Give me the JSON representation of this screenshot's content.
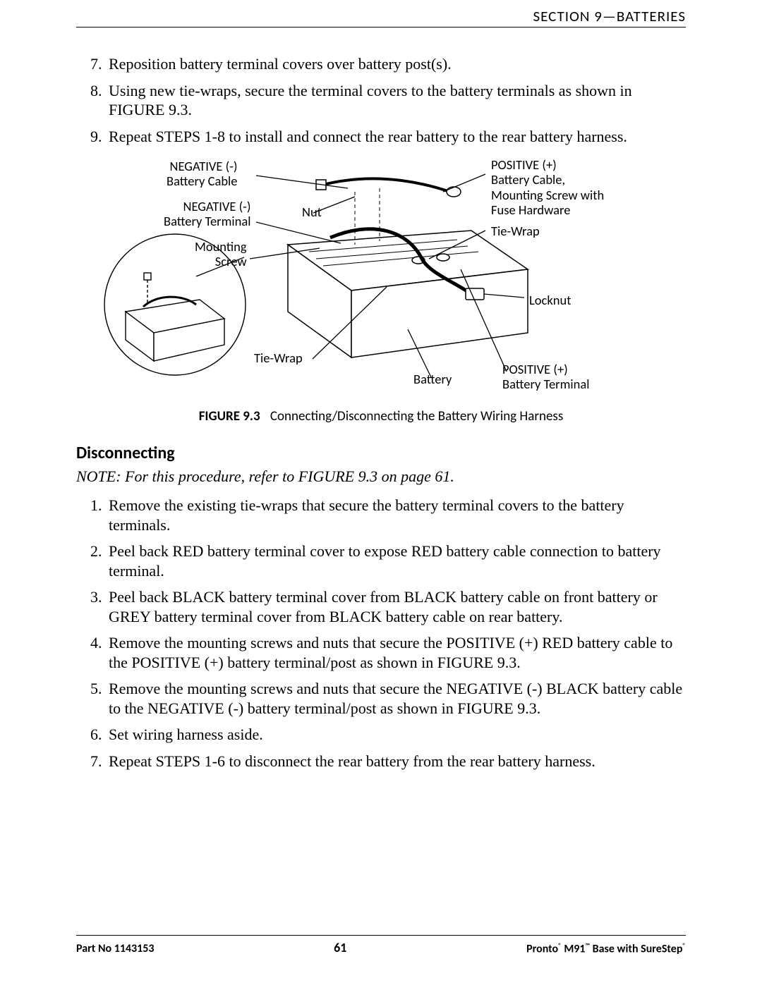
{
  "header": {
    "section_label": "SECTION 9—BATTERIES"
  },
  "steps_top": {
    "start": 7,
    "items": [
      "Reposition battery terminal covers over battery post(s).",
      "Using new tie-wraps, secure the terminal covers to the battery terminals as shown in FIGURE 9.3.",
      "Repeat STEPS 1-8 to install and connect the rear battery to the rear battery harness."
    ]
  },
  "figure": {
    "id": "FIGURE 9.3",
    "caption": "Connecting/Disconnecting the Battery Wiring Harness",
    "labels": {
      "neg_cable": "NEGATIVE (-)\nBattery Cable",
      "neg_terminal": "NEGATIVE (-)\nBattery Terminal",
      "mounting_screw": "Mounting\nScrew",
      "nut": "Nut",
      "tie_wrap_bottom": "Tie-Wrap",
      "pos_cable": "POSITIVE (+)\nBattery Cable,\nMounting Screw with\nFuse Hardware",
      "tie_wrap_right": "Tie-Wrap",
      "locknut": "Locknut",
      "battery": "Battery",
      "pos_terminal": "POSITIVE (+)\nBattery Terminal"
    }
  },
  "subheading": "Disconnecting",
  "note": "NOTE: For this procedure, refer to FIGURE 9.3 on page 61.",
  "steps_bottom": {
    "start": 1,
    "items": [
      "Remove the existing tie-wraps that secure the battery terminal covers to the battery terminals.",
      "Peel back RED battery terminal cover to expose RED battery cable connection to battery terminal.",
      "Peel back BLACK battery terminal cover from BLACK battery cable on front battery or GREY battery terminal cover from BLACK battery cable on rear battery.",
      "Remove the mounting screws and nuts that secure the POSITIVE (+) RED battery cable to the POSITIVE (+) battery terminal/post as shown in FIGURE 9.3.",
      "Remove the mounting screws and nuts that secure the NEGATIVE (-) BLACK battery cable to the NEGATIVE (-) battery terminal/post as shown in FIGURE 9.3.",
      "Set wiring harness aside.",
      "Repeat STEPS 1-6 to disconnect the rear battery from the rear battery harness."
    ]
  },
  "footer": {
    "left": "Part No 1143153",
    "page": "61",
    "right_prefix": "Pronto",
    "right_mid": " M91",
    "right_suffix": " Base with SureStep"
  }
}
